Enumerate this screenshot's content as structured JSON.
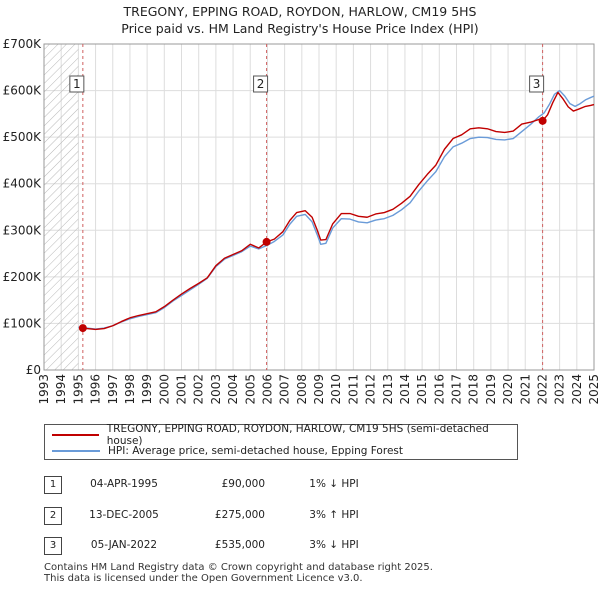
{
  "chart_data": {
    "type": "line",
    "title": [
      "TREGONY, EPPING ROAD, ROYDON, HARLOW, CM19 5HS",
      "Price paid vs. HM Land Registry's House Price Index (HPI)"
    ],
    "xlim": [
      1993,
      2025
    ],
    "ylim": [
      0,
      700000
    ],
    "x_ticks": [
      "1993",
      "1994",
      "1995",
      "1996",
      "1997",
      "1998",
      "1999",
      "2000",
      "2001",
      "2002",
      "2003",
      "2004",
      "2005",
      "2006",
      "2007",
      "2008",
      "2009",
      "2010",
      "2011",
      "2012",
      "2013",
      "2014",
      "2015",
      "2016",
      "2017",
      "2018",
      "2019",
      "2020",
      "2021",
      "2022",
      "2023",
      "2024",
      "2025"
    ],
    "y_ticks": [
      {
        "value": 0,
        "label": "£0"
      },
      {
        "value": 100000,
        "label": "£100K"
      },
      {
        "value": 200000,
        "label": "£200K"
      },
      {
        "value": 300000,
        "label": "£300K"
      },
      {
        "value": 400000,
        "label": "£400K"
      },
      {
        "value": 500000,
        "label": "£500K"
      },
      {
        "value": 600000,
        "label": "£600K"
      },
      {
        "value": 700000,
        "label": "£700K"
      }
    ],
    "hatch_until": 1995.0,
    "colors": {
      "property": "#c00000",
      "hpi": "#6a9bd8",
      "vline": "#d06060",
      "hatch": "#b8b8b8"
    },
    "series": [
      {
        "name": "TREGONY, EPPING ROAD, ROYDON, HARLOW, CM19 5HS (semi-detached house)",
        "color": "#c00000",
        "points": [
          [
            1995.26,
            90000
          ],
          [
            1995.5,
            89000
          ],
          [
            1996,
            87000
          ],
          [
            1996.5,
            89000
          ],
          [
            1997,
            95000
          ],
          [
            1997.5,
            104000
          ],
          [
            1998,
            112000
          ],
          [
            1998.5,
            117000
          ],
          [
            1999,
            121000
          ],
          [
            1999.5,
            125000
          ],
          [
            2000,
            136000
          ],
          [
            2000.5,
            150000
          ],
          [
            2001,
            163000
          ],
          [
            2001.5,
            175000
          ],
          [
            2002,
            186000
          ],
          [
            2002.5,
            198000
          ],
          [
            2003,
            224000
          ],
          [
            2003.5,
            240000
          ],
          [
            2004,
            248000
          ],
          [
            2004.5,
            256000
          ],
          [
            2005,
            270000
          ],
          [
            2005.5,
            262000
          ],
          [
            2005.95,
            275000
          ],
          [
            2006.4,
            281000
          ],
          [
            2006.9,
            297000
          ],
          [
            2007.3,
            321000
          ],
          [
            2007.7,
            338000
          ],
          [
            2008.2,
            342000
          ],
          [
            2008.6,
            328000
          ],
          [
            2008.9,
            300000
          ],
          [
            2009.1,
            279000
          ],
          [
            2009.4,
            280000
          ],
          [
            2009.8,
            314000
          ],
          [
            2010.3,
            336000
          ],
          [
            2010.8,
            336000
          ],
          [
            2011.3,
            330000
          ],
          [
            2011.8,
            328000
          ],
          [
            2012.3,
            335000
          ],
          [
            2012.8,
            338000
          ],
          [
            2013.3,
            345000
          ],
          [
            2013.8,
            358000
          ],
          [
            2014.3,
            373000
          ],
          [
            2014.8,
            398000
          ],
          [
            2015.3,
            420000
          ],
          [
            2015.8,
            440000
          ],
          [
            2016.3,
            474000
          ],
          [
            2016.8,
            497000
          ],
          [
            2017.3,
            505000
          ],
          [
            2017.8,
            518000
          ],
          [
            2018.3,
            520000
          ],
          [
            2018.8,
            518000
          ],
          [
            2019.3,
            512000
          ],
          [
            2019.8,
            510000
          ],
          [
            2020.3,
            513000
          ],
          [
            2020.8,
            528000
          ],
          [
            2021.3,
            532000
          ],
          [
            2021.8,
            538000
          ],
          [
            2022.01,
            535000
          ],
          [
            2022.3,
            548000
          ],
          [
            2022.6,
            574000
          ],
          [
            2022.9,
            596000
          ],
          [
            2023.2,
            582000
          ],
          [
            2023.5,
            565000
          ],
          [
            2023.8,
            556000
          ],
          [
            2024.1,
            560000
          ],
          [
            2024.5,
            566000
          ],
          [
            2024.8,
            568000
          ],
          [
            2025,
            570000
          ]
        ]
      },
      {
        "name": "HPI: Average price, semi-detached house, Epping Forest",
        "color": "#6a9bd8",
        "points": [
          [
            1995.0,
            92000
          ],
          [
            1995.5,
            90000
          ],
          [
            1996,
            88000
          ],
          [
            1996.5,
            90000
          ],
          [
            1997,
            95000
          ],
          [
            1997.5,
            103000
          ],
          [
            1998,
            110000
          ],
          [
            1998.5,
            115000
          ],
          [
            1999,
            119000
          ],
          [
            1999.5,
            123000
          ],
          [
            2000,
            134000
          ],
          [
            2000.5,
            148000
          ],
          [
            2001,
            160000
          ],
          [
            2001.5,
            172000
          ],
          [
            2002,
            184000
          ],
          [
            2002.5,
            197000
          ],
          [
            2003,
            222000
          ],
          [
            2003.5,
            238000
          ],
          [
            2004,
            246000
          ],
          [
            2004.5,
            254000
          ],
          [
            2005,
            266000
          ],
          [
            2005.5,
            260000
          ],
          [
            2006,
            268000
          ],
          [
            2006.4,
            276000
          ],
          [
            2006.9,
            290000
          ],
          [
            2007.3,
            313000
          ],
          [
            2007.7,
            330000
          ],
          [
            2008.2,
            334000
          ],
          [
            2008.6,
            318000
          ],
          [
            2008.9,
            290000
          ],
          [
            2009.1,
            270000
          ],
          [
            2009.4,
            272000
          ],
          [
            2009.8,
            305000
          ],
          [
            2010.3,
            325000
          ],
          [
            2010.8,
            324000
          ],
          [
            2011.3,
            318000
          ],
          [
            2011.8,
            316000
          ],
          [
            2012.3,
            322000
          ],
          [
            2012.8,
            325000
          ],
          [
            2013.3,
            332000
          ],
          [
            2013.8,
            344000
          ],
          [
            2014.3,
            359000
          ],
          [
            2014.8,
            384000
          ],
          [
            2015.3,
            406000
          ],
          [
            2015.8,
            426000
          ],
          [
            2016.3,
            458000
          ],
          [
            2016.8,
            479000
          ],
          [
            2017.3,
            487000
          ],
          [
            2017.8,
            497000
          ],
          [
            2018.3,
            500000
          ],
          [
            2018.8,
            499000
          ],
          [
            2019.3,
            495000
          ],
          [
            2019.8,
            494000
          ],
          [
            2020.3,
            497000
          ],
          [
            2020.8,
            512000
          ],
          [
            2021.3,
            527000
          ],
          [
            2021.8,
            544000
          ],
          [
            2022.1,
            552000
          ],
          [
            2022.4,
            570000
          ],
          [
            2022.7,
            592000
          ],
          [
            2023.0,
            600000
          ],
          [
            2023.3,
            588000
          ],
          [
            2023.6,
            572000
          ],
          [
            2023.9,
            566000
          ],
          [
            2024.2,
            572000
          ],
          [
            2024.5,
            580000
          ],
          [
            2024.8,
            585000
          ],
          [
            2025,
            588000
          ]
        ]
      }
    ],
    "sales": [
      {
        "n": "1",
        "x": 1995.26,
        "price": 90000
      },
      {
        "n": "2",
        "x": 2005.95,
        "price": 275000
      },
      {
        "n": "3",
        "x": 2022.01,
        "price": 535000
      }
    ]
  },
  "legend": {
    "property_label": "TREGONY, EPPING ROAD, ROYDON, HARLOW, CM19 5HS (semi-detached house)",
    "hpi_label": "HPI: Average price, semi-detached house, Epping Forest"
  },
  "sales_table": [
    {
      "n": "1",
      "date": "04-APR-1995",
      "price": "£90,000",
      "hpi": "1% ↓ HPI"
    },
    {
      "n": "2",
      "date": "13-DEC-2005",
      "price": "£275,000",
      "hpi": "3% ↑ HPI"
    },
    {
      "n": "3",
      "date": "05-JAN-2022",
      "price": "£535,000",
      "hpi": "3% ↓ HPI"
    }
  ],
  "footer": {
    "line1": "Contains HM Land Registry data © Crown copyright and database right 2025.",
    "line2": "This data is licensed under the Open Government Licence v3.0."
  }
}
